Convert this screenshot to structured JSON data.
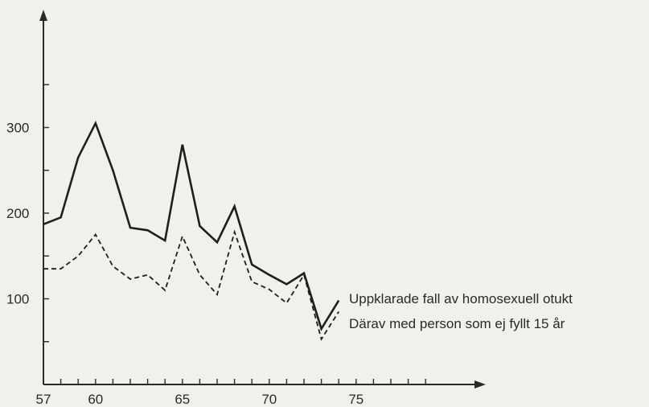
{
  "chart_data": {
    "type": "line",
    "title": "",
    "xlabel": "",
    "ylabel": "",
    "x": [
      57,
      58,
      59,
      60,
      61,
      62,
      63,
      64,
      65,
      66,
      67,
      68,
      69,
      70,
      71,
      72,
      73,
      74
    ],
    "series": [
      {
        "name": "Uppklarade fall av homosexuell otukt",
        "style": "solid",
        "values": [
          187,
          195,
          265,
          305,
          250,
          183,
          180,
          168,
          280,
          185,
          166,
          208,
          140,
          128,
          117,
          130,
          65,
          98
        ]
      },
      {
        "name": "Därav med person som ej fyllt 15 år",
        "style": "dashed",
        "values": [
          135,
          135,
          150,
          175,
          138,
          123,
          128,
          110,
          173,
          128,
          105,
          178,
          120,
          111,
          95,
          128,
          53,
          85
        ]
      }
    ],
    "x_ticks": [
      "57",
      "60",
      "65",
      "70",
      "75"
    ],
    "y_ticks": [
      "100",
      "200",
      "300"
    ],
    "xlim": [
      57,
      80
    ],
    "ylim": [
      0,
      400
    ],
    "grid": false,
    "legend_position": "right, beside line ends",
    "colors": {
      "line": "#1e1e1e",
      "axis": "#2a2a2a",
      "background": "#f1f0ec"
    }
  }
}
